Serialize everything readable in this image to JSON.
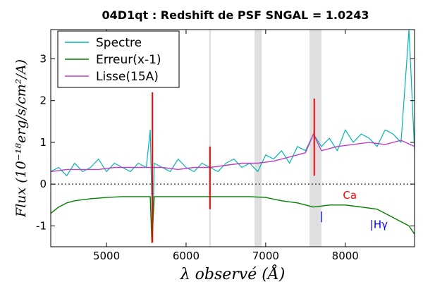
{
  "chart_data": {
    "type": "line",
    "title": "04D1qt : Redshift de PSF SNGAL = 1.0243",
    "xlabel": "λ observé (Å)",
    "ylabel": "Flux (10⁻¹⁸erg/s/cm²/A)",
    "xlim": [
      4300,
      8870
    ],
    "ylim": [
      -1.5,
      3.7
    ],
    "x_ticks": [
      5000,
      6000,
      7000,
      8000
    ],
    "x_tick_labels": [
      "5000",
      "6000",
      "7000",
      "8000"
    ],
    "y_ticks": [
      3,
      2,
      1,
      0,
      -1
    ],
    "y_tick_labels": [
      "3",
      "2",
      "1",
      "0",
      "-1"
    ],
    "zero_line": true,
    "grid": false,
    "legend_placement": "top-left",
    "legend": [
      {
        "label": "Spectre",
        "color": "#00b4b4"
      },
      {
        "label": "Erreur(x-1)",
        "color": "#008000"
      },
      {
        "label": "Lisse(15A)",
        "color": "#bf40bf"
      }
    ],
    "series": [
      {
        "name": "Spectre",
        "color": "#00b4b4",
        "x": [
          4300,
          4400,
          4500,
          4600,
          4700,
          4800,
          4900,
          5000,
          5100,
          5200,
          5300,
          5400,
          5500,
          5550,
          5580,
          5600,
          5700,
          5800,
          5900,
          6000,
          6100,
          6200,
          6300,
          6400,
          6500,
          6600,
          6700,
          6800,
          6900,
          7000,
          7100,
          7200,
          7300,
          7400,
          7500,
          7600,
          7700,
          7800,
          7900,
          8000,
          8100,
          8200,
          8300,
          8400,
          8500,
          8600,
          8700,
          8800,
          8870
        ],
        "y": [
          0.3,
          0.4,
          0.2,
          0.5,
          0.3,
          0.4,
          0.6,
          0.3,
          0.5,
          0.4,
          0.3,
          0.5,
          0.4,
          1.3,
          -1.3,
          0.5,
          0.4,
          0.3,
          0.6,
          0.4,
          0.3,
          0.5,
          0.4,
          0.3,
          0.5,
          0.6,
          0.4,
          0.5,
          0.3,
          0.7,
          0.6,
          0.8,
          0.5,
          0.9,
          0.8,
          1.2,
          0.9,
          1.1,
          0.8,
          1.3,
          1.0,
          1.2,
          1.1,
          0.9,
          1.3,
          1.2,
          1.0,
          3.7,
          0.8
        ]
      },
      {
        "name": "Erreur(x-1)",
        "color": "#008000",
        "x": [
          4300,
          4400,
          4500,
          4600,
          4800,
          5000,
          5200,
          5400,
          5550,
          5570,
          5600,
          5800,
          6000,
          6200,
          6400,
          6600,
          6800,
          7000,
          7200,
          7400,
          7600,
          7800,
          8000,
          8200,
          8400,
          8600,
          8700,
          8800,
          8870
        ],
        "y": [
          -0.7,
          -0.55,
          -0.45,
          -0.4,
          -0.35,
          -0.32,
          -0.3,
          -0.3,
          -0.3,
          -1.4,
          -0.3,
          -0.3,
          -0.3,
          -0.3,
          -0.3,
          -0.3,
          -0.3,
          -0.32,
          -0.4,
          -0.45,
          -0.55,
          -0.5,
          -0.5,
          -0.55,
          -0.6,
          -0.8,
          -0.9,
          -1.0,
          -1.2
        ]
      },
      {
        "name": "Lisse(15A)",
        "color": "#bf40bf",
        "x": [
          4300,
          4500,
          4700,
          4900,
          5100,
          5300,
          5500,
          5570,
          5700,
          5900,
          6100,
          6300,
          6500,
          6700,
          6900,
          7100,
          7300,
          7500,
          7600,
          7700,
          7900,
          8100,
          8300,
          8500,
          8700,
          8870
        ],
        "y": [
          0.3,
          0.35,
          0.35,
          0.35,
          0.4,
          0.4,
          0.4,
          0.4,
          0.4,
          0.35,
          0.4,
          0.4,
          0.45,
          0.5,
          0.5,
          0.55,
          0.65,
          0.75,
          1.2,
          0.8,
          0.9,
          0.95,
          1.0,
          0.95,
          1.05,
          0.9
        ]
      }
    ],
    "shaded_bands": [
      {
        "x0": 6290,
        "x1": 6310
      },
      {
        "x0": 6860,
        "x1": 6950
      },
      {
        "x0": 7550,
        "x1": 7700
      }
    ],
    "emission_marks": [
      {
        "x": 5577,
        "y0": -1.4,
        "y1": 2.2,
        "color": "#ff0000"
      },
      {
        "x": 6300,
        "y0": -0.6,
        "y1": 0.9,
        "color": "#ff0000"
      },
      {
        "x": 7610,
        "y0": 0.2,
        "y1": 2.05,
        "color": "#ff0000"
      }
    ],
    "annotations": [
      {
        "text": "Ca",
        "x": 7970,
        "y": -0.35,
        "color": "#ff0000"
      },
      {
        "text": "|",
        "x": 7680,
        "y": -0.85,
        "color": "#0000ff"
      },
      {
        "text": "|Hγ",
        "x": 8310,
        "y": -1.05,
        "color": "#0000ff"
      }
    ]
  }
}
